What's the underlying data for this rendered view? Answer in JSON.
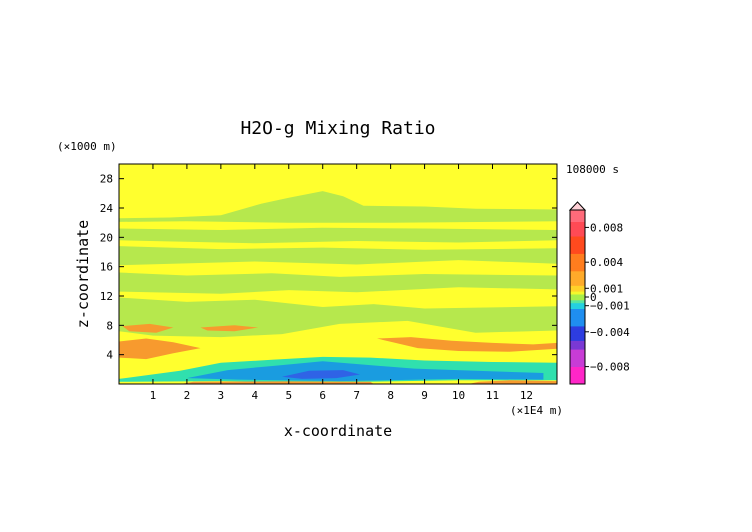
{
  "chart_data": {
    "type": "heatmap",
    "title": "H2O-g Mixing Ratio",
    "xlabel": "x-coordinate",
    "ylabel": "z-coordinate",
    "x_unit": "(×1E4 m)",
    "y_unit": "(×1000 m)",
    "time_label": "108000 s",
    "x_ticks": [
      "1",
      "2",
      "3",
      "4",
      "5",
      "6",
      "7",
      "8",
      "9",
      "10",
      "11",
      "12"
    ],
    "y_ticks": [
      "4",
      "8",
      "12",
      "16",
      "20",
      "24",
      "28"
    ],
    "xlim": [
      0,
      12.9
    ],
    "ylim": [
      0,
      30
    ],
    "colorbar": {
      "labels": [
        "0.008",
        "0.004",
        "0.001",
        "0",
        "−0.001",
        "−0.004",
        "−0.008"
      ],
      "label_values": [
        0.008,
        0.004,
        0.001,
        0,
        -0.001,
        -0.004,
        -0.008
      ],
      "range": [
        -0.01,
        0.01
      ]
    },
    "regions": [
      {
        "name": "background",
        "value": 0.0002,
        "color": "#ffff2e",
        "shape": [
          [
            0,
            0
          ],
          [
            12.9,
            0
          ],
          [
            12.9,
            30
          ],
          [
            0,
            30
          ]
        ]
      },
      {
        "name": "upper-band-24",
        "value": -0.0004,
        "color": "#b6e84d",
        "shape": [
          [
            0,
            22.6
          ],
          [
            1.5,
            22.7
          ],
          [
            3,
            23
          ],
          [
            4.2,
            24.6
          ],
          [
            5,
            25.4
          ],
          [
            6,
            26.3
          ],
          [
            6.6,
            25.6
          ],
          [
            7.2,
            24.3
          ],
          [
            9,
            24.2
          ],
          [
            10.5,
            23.9
          ],
          [
            12.9,
            23.8
          ],
          [
            12.9,
            22.2
          ],
          [
            11,
            22.1
          ],
          [
            8,
            22
          ],
          [
            5,
            22
          ],
          [
            2,
            22.2
          ],
          [
            0,
            22.1
          ]
        ]
      },
      {
        "name": "band-20",
        "value": -0.0004,
        "color": "#b6e84d",
        "shape": [
          [
            0,
            21.2
          ],
          [
            3,
            21
          ],
          [
            6,
            21.3
          ],
          [
            9,
            21.2
          ],
          [
            12.9,
            21
          ],
          [
            12.9,
            19.6
          ],
          [
            10,
            19.3
          ],
          [
            7,
            19.5
          ],
          [
            4,
            19.2
          ],
          [
            0,
            19.6
          ]
        ]
      },
      {
        "name": "band-18",
        "value": -0.0004,
        "color": "#b6e84d",
        "shape": [
          [
            0,
            18.8
          ],
          [
            3,
            18.4
          ],
          [
            6,
            18.6
          ],
          [
            9,
            18.3
          ],
          [
            12.9,
            18.5
          ],
          [
            12.9,
            16.4
          ],
          [
            10,
            16.9
          ],
          [
            7,
            16.3
          ],
          [
            4,
            16.7
          ],
          [
            0,
            16.2
          ]
        ]
      },
      {
        "name": "band-14",
        "value": -0.0004,
        "color": "#b6e84d",
        "shape": [
          [
            0,
            15.2
          ],
          [
            2,
            14.8
          ],
          [
            4.5,
            15.1
          ],
          [
            6.5,
            14.6
          ],
          [
            9,
            15
          ],
          [
            12.9,
            14.8
          ],
          [
            12.9,
            12.9
          ],
          [
            10,
            13.2
          ],
          [
            7,
            12.5
          ],
          [
            5,
            12.8
          ],
          [
            3,
            12.3
          ],
          [
            0,
            12.6
          ]
        ]
      },
      {
        "name": "band-10",
        "value": -0.0004,
        "color": "#b6e84d",
        "shape": [
          [
            0,
            11.8
          ],
          [
            2,
            11.2
          ],
          [
            4,
            11.5
          ],
          [
            6,
            10.5
          ],
          [
            7.5,
            10.9
          ],
          [
            9,
            10.3
          ],
          [
            12.9,
            10.6
          ],
          [
            12.9,
            7.3
          ],
          [
            10.5,
            7
          ],
          [
            8.5,
            8.6
          ],
          [
            6.5,
            8.2
          ],
          [
            4.8,
            6.8
          ],
          [
            3,
            6.4
          ],
          [
            1,
            6.6
          ],
          [
            0,
            7.2
          ]
        ]
      },
      {
        "name": "dry-layer-light",
        "value": -0.002,
        "color": "#30e0ae",
        "shape": [
          [
            0,
            0.7
          ],
          [
            1.8,
            1.8
          ],
          [
            3,
            2.9
          ],
          [
            4.5,
            3.3
          ],
          [
            6,
            3.7
          ],
          [
            7.4,
            3.6
          ],
          [
            9,
            3.2
          ],
          [
            11,
            3
          ],
          [
            12.9,
            2.9
          ],
          [
            12.9,
            0.5
          ],
          [
            10,
            0.5
          ],
          [
            6,
            0.2
          ],
          [
            3,
            0.4
          ],
          [
            0,
            0.3
          ]
        ]
      },
      {
        "name": "dry-layer-mid",
        "value": -0.0035,
        "color": "#1a9ce0",
        "shape": [
          [
            2,
            0.8
          ],
          [
            3.2,
            1.9
          ],
          [
            4.6,
            2.5
          ],
          [
            6,
            3.1
          ],
          [
            7.3,
            2.6
          ],
          [
            8.7,
            2.1
          ],
          [
            10.5,
            1.8
          ],
          [
            12.5,
            1.5
          ],
          [
            12.5,
            0.6
          ],
          [
            10,
            0.7
          ],
          [
            6.5,
            0.4
          ],
          [
            3.5,
            0.6
          ]
        ]
      },
      {
        "name": "dry-layer-core",
        "value": -0.005,
        "color": "#2f63e6",
        "shape": [
          [
            4.8,
            1
          ],
          [
            5.6,
            1.8
          ],
          [
            6.6,
            1.9
          ],
          [
            7.1,
            1.3
          ],
          [
            6.4,
            0.8
          ],
          [
            5.4,
            0.7
          ]
        ]
      },
      {
        "name": "moist-left",
        "value": 0.002,
        "color": "#f79a2e",
        "shape": [
          [
            0,
            3.6
          ],
          [
            0.8,
            3.4
          ],
          [
            1.6,
            4.2
          ],
          [
            2.4,
            4.9
          ],
          [
            1.6,
            5.7
          ],
          [
            0.8,
            6.2
          ],
          [
            0,
            5.8
          ]
        ]
      },
      {
        "name": "moist-left-upper",
        "value": 0.002,
        "color": "#f79a2e",
        "shape": [
          [
            0.1,
            7.9
          ],
          [
            0.9,
            8.2
          ],
          [
            1.6,
            7.7
          ],
          [
            1.1,
            7
          ],
          [
            0.3,
            7.2
          ]
        ]
      },
      {
        "name": "moist-mid",
        "value": 0.002,
        "color": "#f79a2e",
        "shape": [
          [
            2.4,
            7.7
          ],
          [
            3.4,
            8
          ],
          [
            4.1,
            7.7
          ],
          [
            3.4,
            7.2
          ],
          [
            2.6,
            7.3
          ]
        ]
      },
      {
        "name": "moist-right",
        "value": 0.002,
        "color": "#f79a2e",
        "shape": [
          [
            7.6,
            6.2
          ],
          [
            8.6,
            6.4
          ],
          [
            9.8,
            5.9
          ],
          [
            11,
            5.6
          ],
          [
            12.2,
            5.4
          ],
          [
            12.9,
            5.6
          ],
          [
            12.9,
            4.8
          ],
          [
            11.5,
            4.4
          ],
          [
            10,
            4.5
          ],
          [
            8.8,
            4.9
          ]
        ]
      },
      {
        "name": "moist-surface",
        "value": 0.002,
        "color": "#f79a2e",
        "shape": [
          [
            1.8,
            0
          ],
          [
            7.5,
            0
          ],
          [
            7.4,
            0.3
          ],
          [
            5,
            0.35
          ],
          [
            2.2,
            0.3
          ]
        ]
      },
      {
        "name": "moist-surface-right",
        "value": 0.002,
        "color": "#f79a2e",
        "shape": [
          [
            10.3,
            0
          ],
          [
            12.9,
            0
          ],
          [
            12.9,
            0.4
          ],
          [
            11.5,
            0.5
          ],
          [
            10.6,
            0.3
          ]
        ]
      }
    ]
  }
}
